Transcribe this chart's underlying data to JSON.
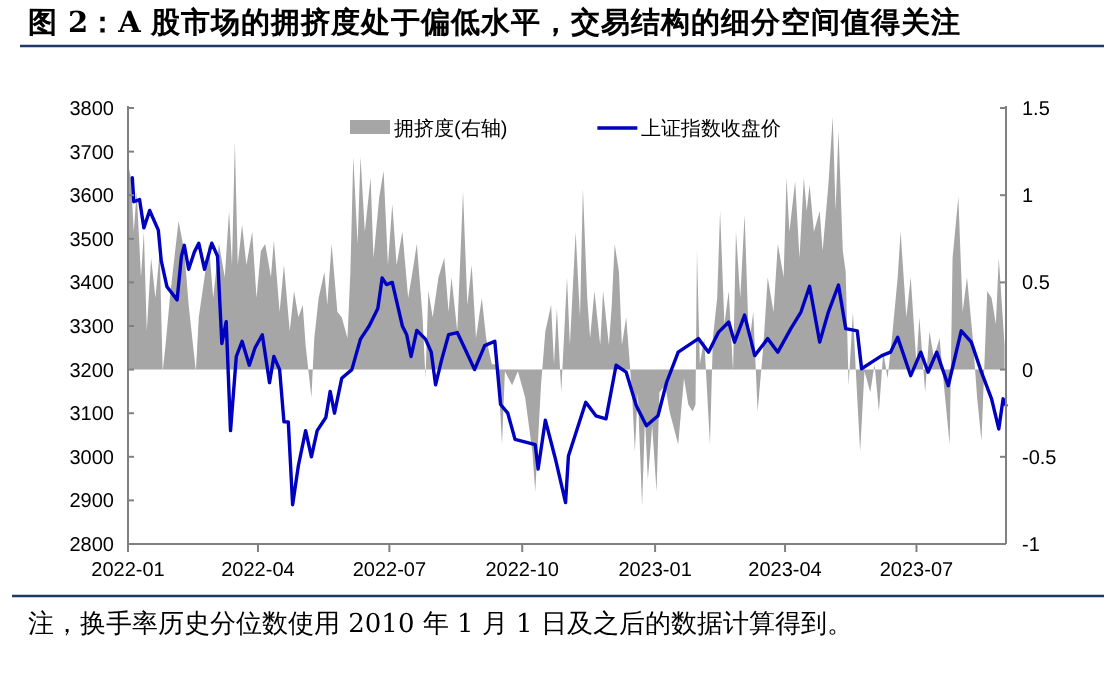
{
  "chart_data": {
    "type": "line",
    "title": "图 2：A 股市场的拥挤度处于偏低水平，交易结构的细分空间值得关注",
    "annotations": [
      "注，换手率历史分位数使用 2010 年 1 月 1 日及之后的数据计算得到。"
    ],
    "legend": "top",
    "xlim": [
      "2022-01-01",
      "2023-09-01"
    ],
    "xticks": [
      "2022-01",
      "2022-04",
      "2022-07",
      "2022-10",
      "2023-01",
      "2023-04",
      "2023-07"
    ],
    "ylim": [
      2800,
      3800
    ],
    "yticks": [
      2800,
      2900,
      3000,
      3100,
      3200,
      3300,
      3400,
      3500,
      3600,
      3700,
      3800
    ],
    "y2lim": [
      -1,
      1.5
    ],
    "y2ticks": [
      -1,
      -0.5,
      0,
      0.5,
      1,
      1.5
    ],
    "series": [
      {
        "name": "拥挤度(右轴)",
        "type": "area",
        "axis": "y2",
        "color": "#a6a6a6",
        "x": [
          "2022-01-01",
          "2022-01-03",
          "2022-01-05",
          "2022-01-07",
          "2022-01-10",
          "2022-01-12",
          "2022-01-14",
          "2022-01-17",
          "2022-01-20",
          "2022-01-23",
          "2022-01-25",
          "2022-01-27",
          "2022-01-30",
          "2022-02-01",
          "2022-02-05",
          "2022-02-09",
          "2022-02-12",
          "2022-02-17",
          "2022-02-19",
          "2022-02-23",
          "2022-02-26",
          "2022-03-01",
          "2022-03-05",
          "2022-03-09",
          "2022-03-12",
          "2022-03-14",
          "2022-03-16",
          "2022-03-18",
          "2022-03-21",
          "2022-03-24",
          "2022-03-28",
          "2022-03-31",
          "2022-04-03",
          "2022-04-06",
          "2022-04-10",
          "2022-04-12",
          "2022-04-16",
          "2022-04-19",
          "2022-04-23",
          "2022-04-26",
          "2022-04-29",
          "2022-05-02",
          "2022-05-04",
          "2022-05-08",
          "2022-05-10",
          "2022-05-13",
          "2022-05-17",
          "2022-05-19",
          "2022-05-22",
          "2022-05-26",
          "2022-05-29",
          "2022-06-02",
          "2022-06-04",
          "2022-06-06",
          "2022-06-09",
          "2022-06-11",
          "2022-06-14",
          "2022-06-18",
          "2022-06-20",
          "2022-06-24",
          "2022-06-27",
          "2022-06-30",
          "2022-07-03",
          "2022-07-06",
          "2022-07-10",
          "2022-07-14",
          "2022-07-17",
          "2022-07-20",
          "2022-07-24",
          "2022-07-26",
          "2022-07-28",
          "2022-07-31",
          "2022-08-04",
          "2022-08-08",
          "2022-08-11",
          "2022-08-13",
          "2022-08-17",
          "2022-08-21",
          "2022-08-24",
          "2022-08-27",
          "2022-08-30",
          "2022-09-03",
          "2022-09-06",
          "2022-09-10",
          "2022-09-14",
          "2022-09-17",
          "2022-09-19",
          "2022-09-24",
          "2022-09-28",
          "2022-10-03",
          "2022-10-08",
          "2022-10-10",
          "2022-10-14",
          "2022-10-17",
          "2022-10-21",
          "2022-10-23",
          "2022-10-25",
          "2022-10-28",
          "2022-11-01",
          "2022-11-03",
          "2022-11-07",
          "2022-11-10",
          "2022-11-12",
          "2022-11-15",
          "2022-11-17",
          "2022-11-20",
          "2022-11-24",
          "2022-11-26",
          "2022-11-30",
          "2022-12-02",
          "2022-12-04",
          "2022-12-07",
          "2022-12-09",
          "2022-12-12",
          "2022-12-16",
          "2022-12-18",
          "2022-12-20",
          "2022-12-23",
          "2022-12-25",
          "2022-12-27",
          "2022-12-30",
          "2023-01-02",
          "2023-01-04",
          "2023-01-08",
          "2023-01-11",
          "2023-01-17",
          "2023-01-21",
          "2023-01-24",
          "2023-01-27",
          "2023-01-29",
          "2023-01-30",
          "2023-02-01",
          "2023-02-04",
          "2023-02-08",
          "2023-02-10",
          "2023-02-13",
          "2023-02-15",
          "2023-02-18",
          "2023-02-21",
          "2023-02-24",
          "2023-02-26",
          "2023-03-01",
          "2023-03-04",
          "2023-03-07",
          "2023-03-10",
          "2023-03-13",
          "2023-03-17",
          "2023-03-20",
          "2023-03-24",
          "2023-03-27",
          "2023-03-31",
          "2023-04-02",
          "2023-04-04",
          "2023-04-08",
          "2023-04-11",
          "2023-04-14",
          "2023-04-16",
          "2023-04-18",
          "2023-04-21",
          "2023-04-25",
          "2023-04-27",
          "2023-05-01",
          "2023-05-04",
          "2023-05-06",
          "2023-05-08",
          "2023-05-11",
          "2023-05-13",
          "2023-05-15",
          "2023-05-18",
          "2023-05-20",
          "2023-05-23",
          "2023-05-26",
          "2023-05-30",
          "2023-06-02",
          "2023-06-05",
          "2023-06-08",
          "2023-06-11",
          "2023-06-14",
          "2023-06-18",
          "2023-06-20",
          "2023-06-24",
          "2023-06-27",
          "2023-07-01",
          "2023-07-03",
          "2023-07-07",
          "2023-07-10",
          "2023-07-13",
          "2023-07-17",
          "2023-07-20",
          "2023-07-24",
          "2023-07-26",
          "2023-07-30",
          "2023-08-02",
          "2023-08-05",
          "2023-08-09",
          "2023-08-12",
          "2023-08-15",
          "2023-08-19",
          "2023-08-22",
          "2023-08-25",
          "2023-08-27",
          "2023-08-31"
        ],
        "values": [
          1.18,
          1.1,
          0.79,
          1.02,
          0.53,
          0.79,
          0.22,
          0.64,
          0.41,
          0.68,
          -0.01,
          0.14,
          0.41,
          0.56,
          0.85,
          0.68,
          0.37,
          -0.01,
          0.3,
          0.53,
          0.72,
          0.41,
          0.72,
          0.53,
          0.91,
          0.6,
          1.31,
          0.6,
          0.83,
          0.6,
          0.79,
          0.41,
          0.68,
          0.72,
          0.53,
          0.74,
          0.33,
          0.6,
          0.22,
          0.45,
          0.3,
          0.37,
          0.14,
          -0.16,
          0.18,
          0.41,
          0.56,
          0.37,
          0.72,
          0.33,
          0.3,
          0.18,
          0.56,
          1.22,
          0.72,
          1.22,
          0.79,
          1.1,
          0.64,
          0.99,
          1.14,
          0.6,
          0.95,
          0.6,
          0.79,
          0.41,
          0.56,
          0.72,
          0.3,
          -0.05,
          0.45,
          0.3,
          0.53,
          0.64,
          0.33,
          0.53,
          0.22,
          1.02,
          0.37,
          0.6,
          0.18,
          0.41,
          0.18,
          0.03,
          0.03,
          -0.43,
          -0.01,
          -0.09,
          -0.01,
          -0.16,
          -0.47,
          -0.7,
          -0.09,
          0.22,
          0.37,
          0.03,
          0.35,
          -0.13,
          0.53,
          0.14,
          0.79,
          0.3,
          1.04,
          0.41,
          0.18,
          0.45,
          0.14,
          0.45,
          0.14,
          0.37,
          0.72,
          0.56,
          0.14,
          0.3,
          -0.13,
          -0.47,
          -0.13,
          -0.78,
          -0.28,
          -0.63,
          -0.32,
          -0.7,
          -0.13,
          -0.09,
          -0.24,
          -0.43,
          -0.05,
          -0.2,
          -0.24,
          -0.2,
          0.68,
          0.03,
          0.18,
          -0.43,
          0.18,
          0.41,
          0.91,
          0.26,
          0.45,
          -0.01,
          0.79,
          0.41,
          0.89,
          0.14,
          0.33,
          -0.24,
          0.14,
          0.53,
          0.33,
          0.72,
          0.53,
          1.1,
          0.79,
          1.08,
          0.64,
          1.1,
          0.91,
          1.06,
          0.79,
          0.91,
          0.68,
          1.06,
          1.45,
          0.91,
          1.37,
          0.68,
          0.56,
          -0.09,
          0.33,
          -0.01,
          -0.47,
          -0.01,
          -0.13,
          0.03,
          -0.24,
          0.1,
          -0.05,
          0.18,
          0.53,
          0.79,
          0.3,
          0.53,
          0.03,
          0.3,
          -0.13,
          0.22,
          0.07,
          0.18,
          -0.09,
          -0.43,
          0.64,
          0.99,
          0.33,
          0.53,
          0.18,
          -0.16,
          -0.41,
          0.45,
          0.41,
          0.26,
          0.64,
          0.14
        ]
      },
      {
        "name": "上证指数收盘价",
        "color": "#0000c0",
        "x": [
          "2022-01-04",
          "2022-01-05",
          "2022-01-09",
          "2022-01-12",
          "2022-01-16",
          "2022-01-22",
          "2022-01-24",
          "2022-01-28",
          "2022-02-04",
          "2022-02-07",
          "2022-02-09",
          "2022-02-12",
          "2022-02-16",
          "2022-02-19",
          "2022-02-23",
          "2022-02-28",
          "2022-03-04",
          "2022-03-07",
          "2022-03-10",
          "2022-03-13",
          "2022-03-17",
          "2022-03-21",
          "2022-03-26",
          "2022-03-30",
          "2022-04-04",
          "2022-04-09",
          "2022-04-12",
          "2022-04-16",
          "2022-04-19",
          "2022-04-22",
          "2022-04-25",
          "2022-04-29",
          "2022-05-04",
          "2022-05-08",
          "2022-05-12",
          "2022-05-18",
          "2022-05-21",
          "2022-05-24",
          "2022-05-29",
          "2022-06-05",
          "2022-06-11",
          "2022-06-17",
          "2022-06-23",
          "2022-06-26",
          "2022-06-29",
          "2022-07-03",
          "2022-07-10",
          "2022-07-13",
          "2022-07-16",
          "2022-07-20",
          "2022-07-26",
          "2022-07-30",
          "2022-08-02",
          "2022-08-06",
          "2022-08-11",
          "2022-08-17",
          "2022-08-22",
          "2022-08-29",
          "2022-09-05",
          "2022-09-12",
          "2022-09-16",
          "2022-09-21",
          "2022-09-26",
          "2022-10-10",
          "2022-10-12",
          "2022-10-17",
          "2022-10-24",
          "2022-10-31",
          "2022-11-02",
          "2022-11-14",
          "2022-11-21",
          "2022-11-28",
          "2022-12-05",
          "2022-12-12",
          "2022-12-19",
          "2022-12-26",
          "2023-01-03",
          "2023-01-09",
          "2023-01-17",
          "2023-01-31",
          "2023-02-07",
          "2023-02-14",
          "2023-02-21",
          "2023-02-25",
          "2023-03-04",
          "2023-03-11",
          "2023-03-20",
          "2023-03-27",
          "2023-04-05",
          "2023-04-12",
          "2023-04-18",
          "2023-04-25",
          "2023-05-01",
          "2023-05-08",
          "2023-05-13",
          "2023-05-21",
          "2023-05-24",
          "2023-05-31",
          "2023-06-07",
          "2023-06-13",
          "2023-06-18",
          "2023-06-27",
          "2023-07-04",
          "2023-07-09",
          "2023-07-15",
          "2023-07-23",
          "2023-08-01",
          "2023-08-08",
          "2023-08-15",
          "2023-08-22",
          "2023-08-27",
          "2023-08-30",
          "2023-09-01"
        ],
        "values": [
          3640,
          3585,
          3590,
          3525,
          3565,
          3520,
          3450,
          3390,
          3360,
          3460,
          3485,
          3430,
          3470,
          3490,
          3430,
          3490,
          3460,
          3260,
          3310,
          3060,
          3230,
          3265,
          3210,
          3250,
          3280,
          3170,
          3230,
          3200,
          3080,
          3080,
          2890,
          2980,
          3060,
          3000,
          3060,
          3090,
          3150,
          3100,
          3180,
          3200,
          3270,
          3300,
          3340,
          3410,
          3395,
          3400,
          3300,
          3280,
          3230,
          3290,
          3270,
          3240,
          3165,
          3220,
          3280,
          3285,
          3250,
          3200,
          3255,
          3265,
          3120,
          3100,
          3040,
          3028,
          2972,
          3084,
          2995,
          2895,
          3002,
          3125,
          3094,
          3087,
          3210,
          3194,
          3117,
          3071,
          3094,
          3171,
          3240,
          3271,
          3240,
          3286,
          3309,
          3263,
          3325,
          3232,
          3271,
          3240,
          3294,
          3332,
          3391,
          3263,
          3332,
          3394,
          3294,
          3289,
          3202,
          3217,
          3232,
          3240,
          3274,
          3186,
          3240,
          3194,
          3240,
          3163,
          3289,
          3263,
          3194,
          3133,
          3064,
          3133,
          3118
        ]
      }
    ]
  }
}
